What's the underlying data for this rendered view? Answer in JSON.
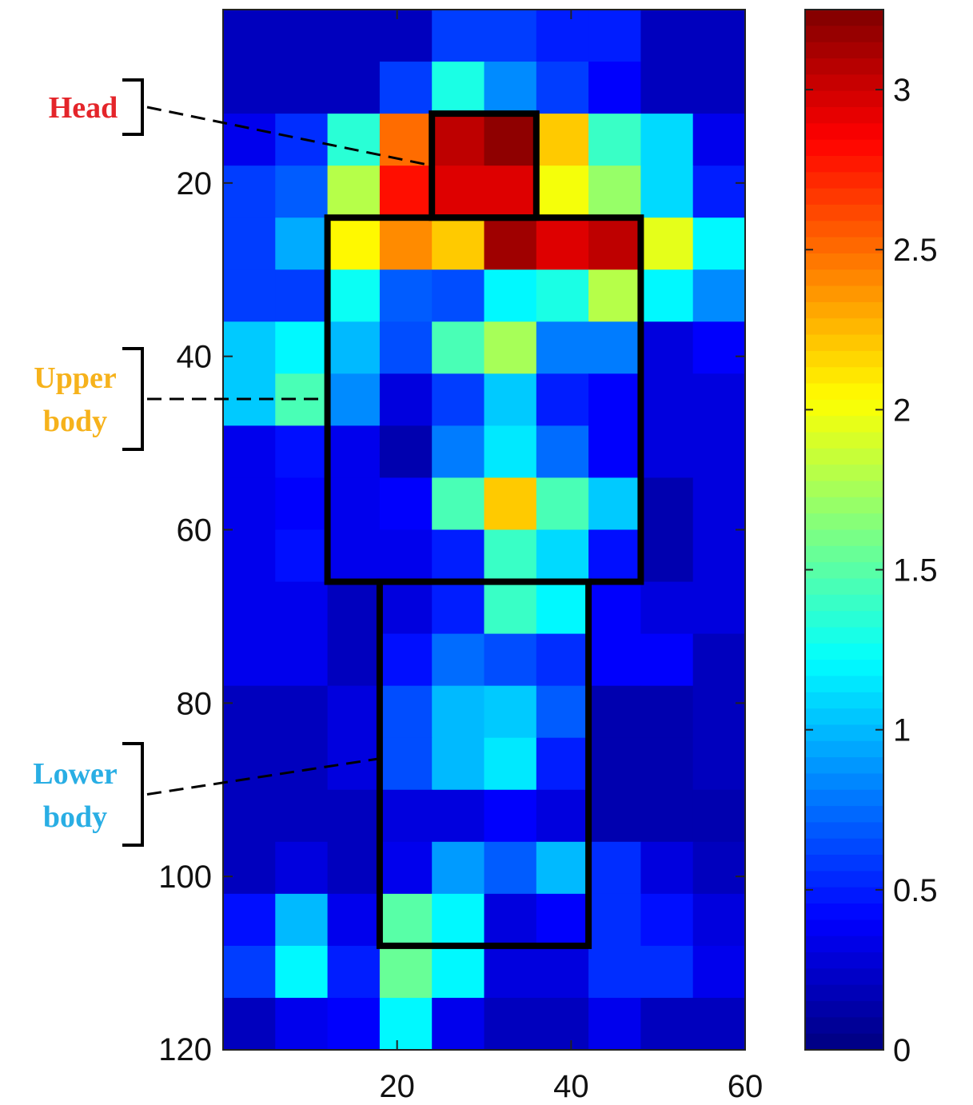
{
  "chart_data": {
    "type": "heatmap",
    "title": "",
    "xlabel": "",
    "ylabel": "",
    "cols": 10,
    "rows": 20,
    "xlim": [
      0,
      60
    ],
    "ylim": [
      0,
      120
    ],
    "x_ticks": [
      20,
      40,
      60
    ],
    "y_ticks": [
      20,
      40,
      60,
      80,
      100,
      120
    ],
    "y_axis_direction": "down",
    "colorbar": {
      "min": 0,
      "max": 3.25,
      "ticks": [
        0,
        0.5,
        1,
        1.5,
        2,
        2.5,
        3
      ],
      "tick_labels": [
        "0",
        "0.5",
        "1",
        "1.5",
        "2",
        "2.5",
        "3"
      ],
      "colormap": "jet"
    },
    "values": [
      [
        0.2,
        0.2,
        0.2,
        0.2,
        0.6,
        0.6,
        0.5,
        0.5,
        0.2,
        0.2
      ],
      [
        0.2,
        0.2,
        0.2,
        0.6,
        1.3,
        0.85,
        0.6,
        0.4,
        0.2,
        0.2
      ],
      [
        0.35,
        0.55,
        1.35,
        2.5,
        3.05,
        3.2,
        2.2,
        1.4,
        1.1,
        0.35
      ],
      [
        0.6,
        0.7,
        1.8,
        2.8,
        2.95,
        2.95,
        2.0,
        1.7,
        1.1,
        0.5
      ],
      [
        0.6,
        0.95,
        2.05,
        2.4,
        2.2,
        3.15,
        2.95,
        3.05,
        1.95,
        1.2
      ],
      [
        0.6,
        0.6,
        1.25,
        0.7,
        0.65,
        1.2,
        1.3,
        1.8,
        1.2,
        0.85
      ],
      [
        1.05,
        1.2,
        1.0,
        0.65,
        1.45,
        1.75,
        0.8,
        0.8,
        0.3,
        0.4
      ],
      [
        1.05,
        1.45,
        0.85,
        0.3,
        0.6,
        1.05,
        0.5,
        0.4,
        0.3,
        0.3
      ],
      [
        0.35,
        0.45,
        0.35,
        0.15,
        0.8,
        1.15,
        0.75,
        0.4,
        0.3,
        0.3
      ],
      [
        0.35,
        0.4,
        0.35,
        0.4,
        1.45,
        2.2,
        1.45,
        1.05,
        0.15,
        0.3
      ],
      [
        0.35,
        0.45,
        0.35,
        0.35,
        0.5,
        1.4,
        1.1,
        0.45,
        0.15,
        0.3
      ],
      [
        0.35,
        0.35,
        0.2,
        0.3,
        0.5,
        1.4,
        1.2,
        0.4,
        0.3,
        0.3
      ],
      [
        0.35,
        0.35,
        0.2,
        0.45,
        0.75,
        0.65,
        0.55,
        0.4,
        0.4,
        0.2
      ],
      [
        0.2,
        0.2,
        0.3,
        0.65,
        1.0,
        1.05,
        0.7,
        0.15,
        0.15,
        0.2
      ],
      [
        0.2,
        0.2,
        0.3,
        0.65,
        1.0,
        1.15,
        0.5,
        0.15,
        0.15,
        0.2
      ],
      [
        0.2,
        0.2,
        0.2,
        0.3,
        0.3,
        0.4,
        0.3,
        0.15,
        0.15,
        0.15
      ],
      [
        0.2,
        0.3,
        0.2,
        0.35,
        0.9,
        0.7,
        1.0,
        0.55,
        0.3,
        0.2
      ],
      [
        0.45,
        1.0,
        0.35,
        1.5,
        1.2,
        0.3,
        0.4,
        0.55,
        0.45,
        0.3
      ],
      [
        0.6,
        1.2,
        0.5,
        1.55,
        1.2,
        0.3,
        0.3,
        0.55,
        0.55,
        0.35
      ],
      [
        0.2,
        0.35,
        0.4,
        1.2,
        0.35,
        0.2,
        0.2,
        0.35,
        0.2,
        0.2
      ]
    ],
    "regions": [
      {
        "name": "Head",
        "label_lines": [
          "Head"
        ],
        "color": "#e4252a",
        "col_start": 4,
        "col_end": 6,
        "row_start": 2,
        "row_end": 4
      },
      {
        "name": "Upper body",
        "label_lines": [
          "Upper",
          "body"
        ],
        "color": "#f6b21b",
        "col_start": 2,
        "col_end": 8,
        "row_start": 4,
        "row_end": 11
      },
      {
        "name": "Lower body",
        "label_lines": [
          "Lower",
          "body"
        ],
        "color": "#29aee4",
        "col_start": 3,
        "col_end": 7,
        "row_start": 11,
        "row_end": 18
      }
    ]
  }
}
